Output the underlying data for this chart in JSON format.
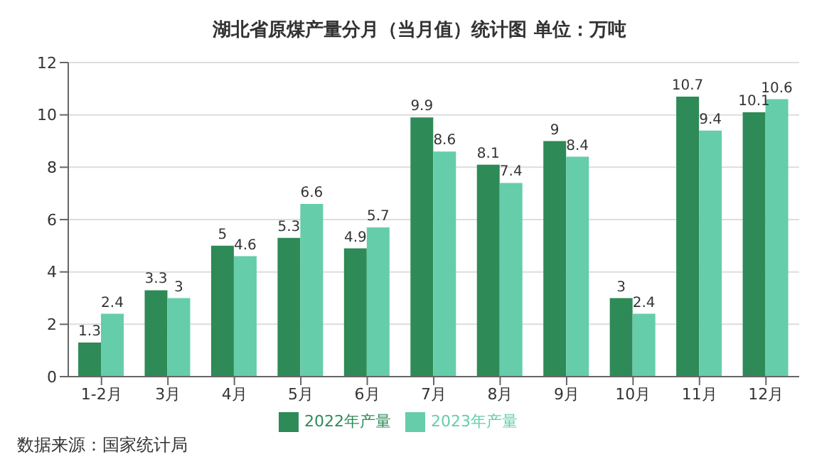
{
  "chart_data": {
    "type": "bar",
    "title": "湖北省原煤产量分月（当月值）统计图 单位：万吨",
    "categories": [
      "1-2月",
      "3月",
      "4月",
      "5月",
      "6月",
      "7月",
      "8月",
      "9月",
      "10月",
      "11月",
      "12月"
    ],
    "series": [
      {
        "name": "2022年产量",
        "color": "#2e8b57",
        "values": [
          1.3,
          3.3,
          5,
          5.3,
          4.9,
          9.9,
          8.1,
          9,
          3,
          10.7,
          10.1
        ]
      },
      {
        "name": "2023年产量",
        "color": "#66cdaa",
        "values": [
          2.4,
          3,
          4.6,
          6.6,
          5.7,
          8.6,
          7.4,
          8.4,
          2.4,
          9.4,
          10.6
        ]
      }
    ],
    "ylim": [
      0,
      12
    ],
    "yticks": [
      0,
      2,
      4,
      6,
      8,
      10,
      12
    ],
    "grid": "y",
    "legend": "bottom",
    "data_labels": true,
    "annotations": [
      "数据来源：国家统计局"
    ]
  }
}
